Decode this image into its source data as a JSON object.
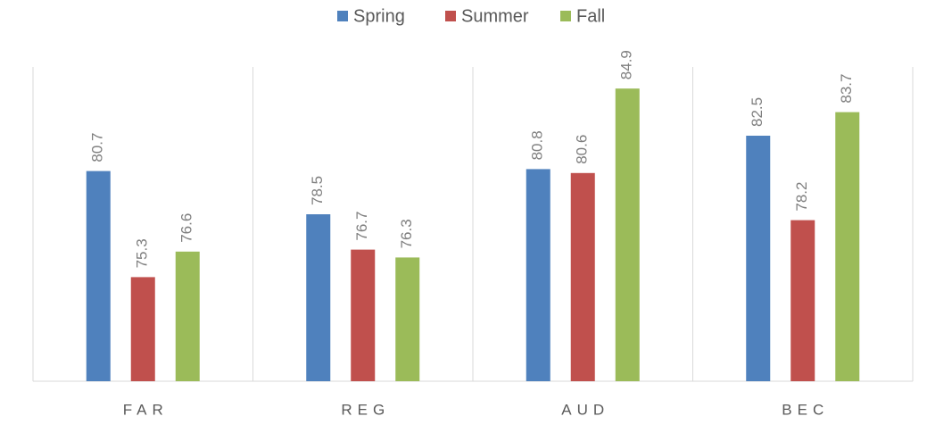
{
  "chart_data": {
    "type": "bar",
    "categories": [
      "FAR",
      "REG",
      "AUD",
      "BEC"
    ],
    "series": [
      {
        "name": "Spring",
        "color": "#4f81bd",
        "values": [
          80.7,
          78.5,
          80.8,
          82.5
        ]
      },
      {
        "name": "Summer",
        "color": "#c0504d",
        "values": [
          75.3,
          76.7,
          80.6,
          78.2
        ]
      },
      {
        "name": "Fall",
        "color": "#9bbb59",
        "values": [
          76.6,
          76.3,
          84.9,
          83.7
        ]
      }
    ],
    "ylim": [
      70,
      86
    ],
    "legend": "top"
  }
}
